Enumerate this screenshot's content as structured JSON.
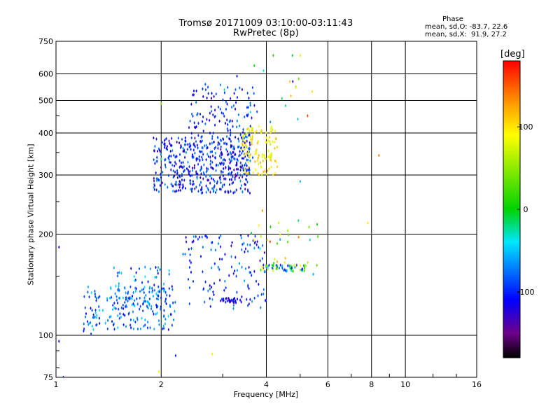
{
  "chart_data": {
    "type": "scatter",
    "title": "Tromsø 20171009 03:10:00-03:11:43",
    "subtitle": "RwPretec (8p)",
    "xlabel": "Frequency [MHz]",
    "ylabel": "Stationary phase Virtual Height [km]",
    "x_scale": "log",
    "y_scale": "log",
    "xlim": [
      1,
      16
    ],
    "ylim": [
      75,
      750
    ],
    "x_ticks": [
      "1",
      "2",
      "4",
      "6",
      "8",
      "10",
      "16"
    ],
    "y_ticks": [
      "75",
      "100",
      "200",
      "300",
      "400",
      "500",
      "600",
      "750"
    ],
    "grid": true,
    "colorbar": {
      "label": "[deg]",
      "ticks": [
        "100",
        "0",
        "-100"
      ],
      "range": [
        -180,
        180
      ]
    },
    "phase_stats": {
      "heading": "Phase",
      "o_mode": "mean, sd,O: -83.7, 22.6",
      "x_mode": "mean, sd,X:  91.9, 27.2"
    },
    "clusters": [
      {
        "x": [
          1.9,
          3.6
        ],
        "y": [
          265,
          390
        ],
        "phase": [
          -140,
          -60
        ],
        "count": 430
      },
      {
        "x": [
          2.4,
          3.7
        ],
        "y": [
          300,
          560
        ],
        "phase": [
          -130,
          -70
        ],
        "count": 180
      },
      {
        "x": [
          3.4,
          4.3
        ],
        "y": [
          300,
          420
        ],
        "phase": [
          70,
          120
        ],
        "count": 120
      },
      {
        "x": [
          1.2,
          2.2
        ],
        "y": [
          104,
          140
        ],
        "phase": [
          -110,
          -40
        ],
        "count": 190
      },
      {
        "x": [
          1.45,
          2.15
        ],
        "y": [
          120,
          160
        ],
        "phase": [
          -120,
          -40
        ],
        "count": 70
      },
      {
        "x": [
          2.3,
          4.0
        ],
        "y": [
          120,
          200
        ],
        "phase": [
          -130,
          -60
        ],
        "count": 130
      },
      {
        "x": [
          3.85,
          5.2
        ],
        "y": [
          155,
          162
        ],
        "phase": [
          -120,
          100
        ],
        "count": 60
      },
      {
        "x": [
          2.95,
          3.4
        ],
        "y": [
          125,
          129
        ],
        "phase": [
          -140,
          -90
        ],
        "count": 30
      },
      {
        "x": [
          3.5,
          6.0
        ],
        "y": [
          160,
          220
        ],
        "phase": [
          -60,
          120
        ],
        "count": 25
      },
      {
        "x": [
          3.0,
          5.5
        ],
        "y": [
          420,
          700
        ],
        "phase": [
          -120,
          120
        ],
        "count": 18
      }
    ],
    "points": [
      {
        "x": 1.02,
        "y": 96,
        "phase": -110
      },
      {
        "x": 1.05,
        "y": 75,
        "phase": -100
      },
      {
        "x": 1.2,
        "y": 103,
        "phase": -100
      },
      {
        "x": 1.26,
        "y": 101,
        "phase": -90
      },
      {
        "x": 1.02,
        "y": 183,
        "phase": -120
      },
      {
        "x": 1.97,
        "y": 78,
        "phase": 80
      },
      {
        "x": 2.2,
        "y": 87,
        "phase": -100
      },
      {
        "x": 2.1,
        "y": 104,
        "phase": -120
      },
      {
        "x": 2.0,
        "y": 335,
        "phase": -20
      },
      {
        "x": 2.0,
        "y": 490,
        "phase": 40
      },
      {
        "x": 2.8,
        "y": 88,
        "phase": 100
      },
      {
        "x": 5.0,
        "y": 680,
        "phase": 100
      },
      {
        "x": 4.95,
        "y": 580,
        "phase": 30
      },
      {
        "x": 5.25,
        "y": 450,
        "phase": 160
      },
      {
        "x": 7.8,
        "y": 216,
        "phase": 100
      },
      {
        "x": 8.4,
        "y": 343,
        "phase": 140
      },
      {
        "x": 5.3,
        "y": 210,
        "phase": 40
      },
      {
        "x": 3.9,
        "y": 235,
        "phase": 130
      },
      {
        "x": 4.1,
        "y": 190,
        "phase": 160
      },
      {
        "x": 4.95,
        "y": 196,
        "phase": 140
      },
      {
        "x": 5.0,
        "y": 287,
        "phase": -60
      },
      {
        "x": 5.45,
        "y": 152,
        "phase": -60
      }
    ]
  }
}
